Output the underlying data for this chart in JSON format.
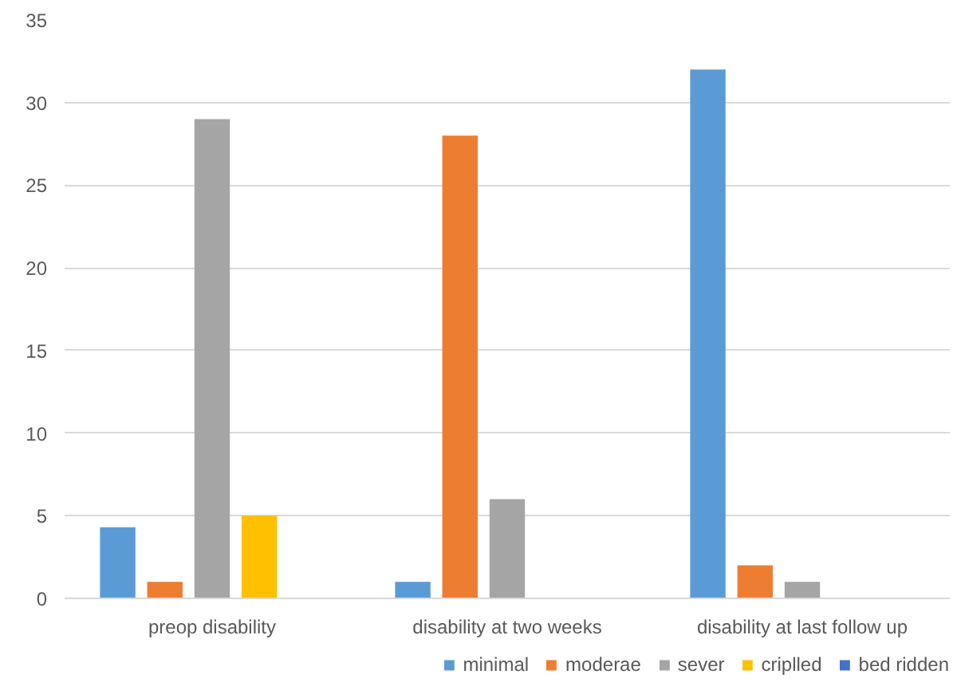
{
  "chart_data": {
    "type": "bar",
    "categories": [
      "preop disability",
      "disability at two weeks",
      "disability at last follow up"
    ],
    "series": [
      {
        "name": "minimal",
        "color": "#5b9bd5",
        "values": [
          4.3,
          1,
          32
        ]
      },
      {
        "name": "moderae",
        "color": "#ed7d31",
        "values": [
          1,
          28,
          2
        ]
      },
      {
        "name": "sever",
        "color": "#a5a5a5",
        "values": [
          29,
          6,
          1
        ]
      },
      {
        "name": "criplled",
        "color": "#ffc000",
        "values": [
          5,
          0,
          0
        ]
      },
      {
        "name": "bed ridden",
        "color": "#4472c4",
        "values": [
          0,
          0,
          0
        ]
      }
    ],
    "ylim": [
      0,
      35
    ],
    "yticks": [
      0,
      5,
      10,
      15,
      20,
      25,
      30,
      35
    ],
    "grid": "y",
    "legend": "bottom"
  }
}
